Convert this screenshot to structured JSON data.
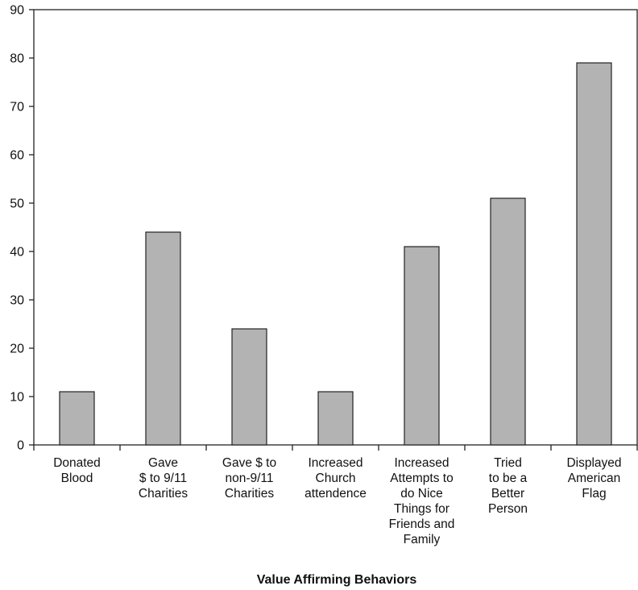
{
  "chart_data": {
    "type": "bar",
    "title": "",
    "xlabel": "Value Affirming Behaviors",
    "ylabel": "",
    "ylim": [
      0,
      90
    ],
    "yticks": [
      0,
      10,
      20,
      30,
      40,
      50,
      60,
      70,
      80,
      90
    ],
    "grid": false,
    "bar_color": "#b3b3b3",
    "categories": [
      [
        "Donated",
        "Blood"
      ],
      [
        "Gave",
        "$ to 9/11",
        "Charities"
      ],
      [
        "Gave $ to",
        "non-9/11",
        "Charities"
      ],
      [
        "Increased",
        "Church",
        "attendence"
      ],
      [
        "Increased",
        "Attempts to",
        "do Nice",
        "Things for",
        "Friends and",
        "Family"
      ],
      [
        "Tried",
        "to be a",
        "Better",
        "Person"
      ],
      [
        "Displayed",
        "American",
        "Flag"
      ]
    ],
    "values": [
      11,
      44,
      24,
      11,
      41,
      51,
      79
    ]
  }
}
